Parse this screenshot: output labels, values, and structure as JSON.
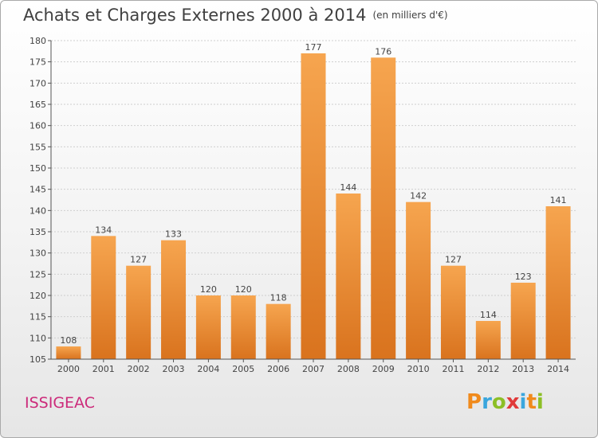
{
  "title": "Achats et Charges Externes 2000 à 2014",
  "subtitle": "(en milliers d'€)",
  "place": "ISSIGEAC",
  "logo": {
    "letters": [
      "P",
      "r",
      "o",
      "x",
      "i",
      "t",
      "i"
    ],
    "colors": [
      "#f08a1c",
      "#3aa6dd",
      "#8cbf26",
      "#e03a3a",
      "#3aa6dd",
      "#f08a1c",
      "#8cbf26"
    ]
  },
  "colors": {
    "bar_light": "#f6a54f",
    "bar_dark": "#d9731e",
    "axis": "#555555",
    "grid": "#cfcfcf",
    "place": "#cc2a7a"
  },
  "chart_data": {
    "type": "bar",
    "categories": [
      "2000",
      "2001",
      "2002",
      "2003",
      "2004",
      "2005",
      "2006",
      "2007",
      "2008",
      "2009",
      "2010",
      "2011",
      "2012",
      "2013",
      "2014"
    ],
    "values": [
      108,
      134,
      127,
      133,
      120,
      120,
      118,
      177,
      144,
      176,
      142,
      127,
      114,
      123,
      141
    ],
    "ylim": [
      105,
      180
    ],
    "yticks": [
      105,
      110,
      115,
      120,
      125,
      130,
      135,
      140,
      145,
      150,
      155,
      160,
      165,
      170,
      175,
      180
    ],
    "grid": true
  }
}
